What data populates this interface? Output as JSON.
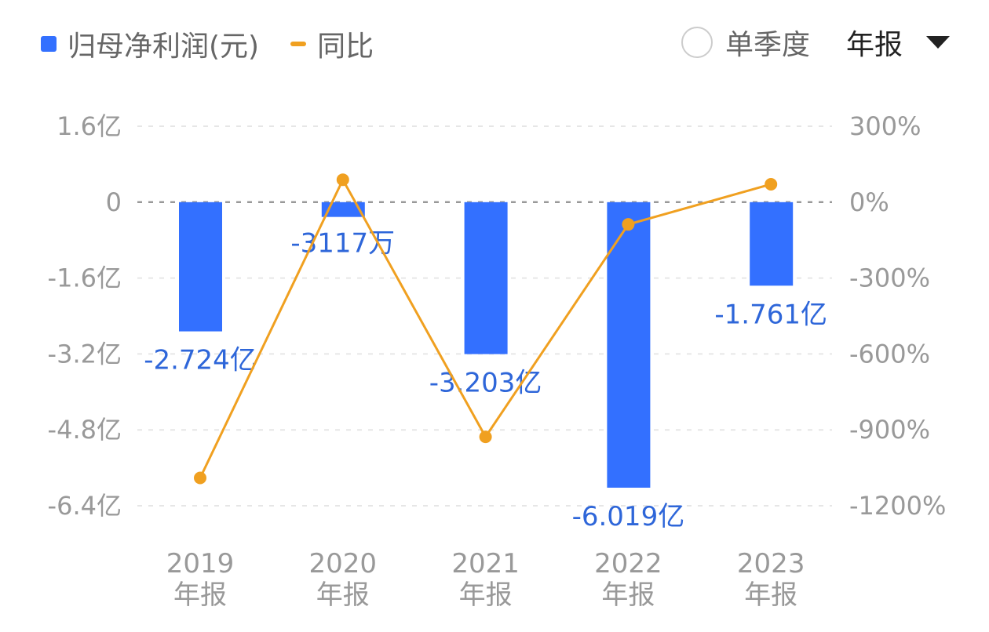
{
  "legend": {
    "bar_label": "归母净利润(元)",
    "line_label": "同比"
  },
  "controls": {
    "quarter_label": "单季度",
    "period_label": "年报"
  },
  "colors": {
    "bar": "#3370ff",
    "line": "#f0a020",
    "label": "#2e66d9"
  },
  "chart_data": {
    "type": "bar",
    "categories": [
      "2019",
      "2020",
      "2021",
      "2022",
      "2023"
    ],
    "category_sub": [
      "年报",
      "年报",
      "年报",
      "年报",
      "年报"
    ],
    "series": [
      {
        "name": "归母净利润(元)",
        "type": "bar",
        "axis": "left",
        "unit": "亿",
        "values": [
          -2.724,
          -0.3117,
          -3.203,
          -6.019,
          -1.761
        ],
        "labels": [
          "-2.724亿",
          "-3117万",
          "-3.203亿",
          "-6.019亿",
          "-1.761亿"
        ]
      },
      {
        "name": "同比",
        "type": "line",
        "axis": "right",
        "unit": "%",
        "values": [
          -1090,
          88.6,
          -927.6,
          -87.9,
          70.7
        ]
      }
    ],
    "left_axis": {
      "range": [
        -6.4,
        1.6
      ],
      "ticks": [
        1.6,
        0,
        -1.6,
        -3.2,
        -4.8,
        -6.4
      ],
      "tick_labels": [
        "1.6亿",
        "0",
        "-1.6亿",
        "-3.2亿",
        "-4.8亿",
        "-6.4亿"
      ]
    },
    "right_axis": {
      "range": [
        -1200,
        300
      ],
      "ticks": [
        300,
        0,
        -300,
        -600,
        -900,
        -1200
      ],
      "tick_labels": [
        "300%",
        "0%",
        "-300%",
        "-600%",
        "-900%",
        "-1200%"
      ]
    },
    "grid": true
  }
}
